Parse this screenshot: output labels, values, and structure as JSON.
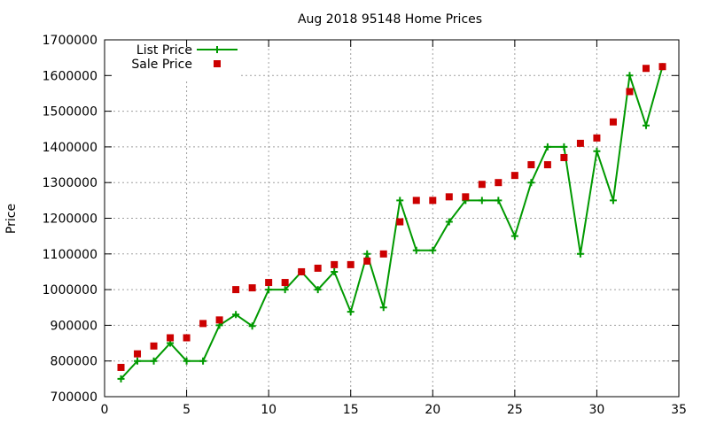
{
  "chart_data": {
    "type": "line",
    "title": "Aug 2018 95148 Home Prices",
    "xlabel": "",
    "ylabel": "Price",
    "xlim": [
      0,
      35
    ],
    "ylim": [
      700000,
      1700000
    ],
    "x_ticks": [
      0,
      5,
      10,
      15,
      20,
      25,
      30,
      35
    ],
    "y_ticks": [
      700000,
      800000,
      900000,
      1000000,
      1100000,
      1200000,
      1300000,
      1400000,
      1500000,
      1600000,
      1700000
    ],
    "grid": true,
    "legend_position": "top-left",
    "x": [
      1,
      2,
      3,
      4,
      5,
      6,
      7,
      8,
      9,
      10,
      11,
      12,
      13,
      14,
      15,
      16,
      17,
      18,
      19,
      20,
      21,
      22,
      23,
      24,
      25,
      26,
      27,
      28,
      29,
      30,
      31,
      32,
      33,
      34
    ],
    "series": [
      {
        "name": "List Price",
        "style": "line+cross",
        "color": "#009900",
        "values": [
          750000,
          800000,
          800000,
          850000,
          800000,
          800000,
          900000,
          930000,
          898000,
          1000000,
          1000000,
          1050000,
          1000000,
          1050000,
          938000,
          1100000,
          950000,
          1250000,
          1110000,
          1110000,
          1190000,
          1250000,
          1250000,
          1250000,
          1150000,
          1300000,
          1400000,
          1400000,
          1100000,
          1388000,
          1250000,
          1600000,
          1460000,
          1625000
        ]
      },
      {
        "name": "Sale Price",
        "style": "square",
        "color": "#cc0000",
        "values": [
          782000,
          820000,
          842000,
          865000,
          865000,
          905000,
          915000,
          1000000,
          1005000,
          1020000,
          1020000,
          1050000,
          1060000,
          1070000,
          1070000,
          1080000,
          1100000,
          1190000,
          1250000,
          1250000,
          1260000,
          1260000,
          1295000,
          1300000,
          1320000,
          1350000,
          1350000,
          1370000,
          1410000,
          1425000,
          1470000,
          1555000,
          1620000,
          1625000
        ]
      }
    ]
  }
}
